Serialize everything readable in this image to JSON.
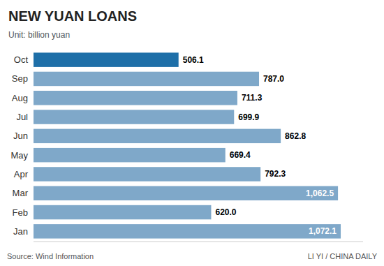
{
  "chart_data": {
    "type": "bar",
    "orientation": "horizontal",
    "title": "NEW YUAN LOANS",
    "subtitle": "Unit: billion yuan",
    "categories": [
      "Oct",
      "Sep",
      "Aug",
      "Jul",
      "Jun",
      "May",
      "Apr",
      "Mar",
      "Feb",
      "Jan"
    ],
    "values": [
      506.1,
      787.0,
      711.3,
      699.9,
      862.8,
      669.4,
      792.3,
      1062.5,
      620.0,
      1072.1
    ],
    "value_labels": [
      "506.1",
      "787.0",
      "711.3",
      "699.9",
      "862.8",
      "669.4",
      "792.3",
      "1,062.5",
      "620.0",
      "1,072.1"
    ],
    "colors": [
      "#1e6fa8",
      "#7fa8c9",
      "#7fa8c9",
      "#7fa8c9",
      "#7fa8c9",
      "#7fa8c9",
      "#7fa8c9",
      "#7fa8c9",
      "#7fa8c9",
      "#7fa8c9"
    ],
    "xlim": [
      0,
      1150
    ],
    "data_labels": true,
    "tick_labels": "y",
    "grid": false,
    "annotations": [
      "Source: Wind Information",
      "LI YI / CHINA DAILY"
    ]
  }
}
